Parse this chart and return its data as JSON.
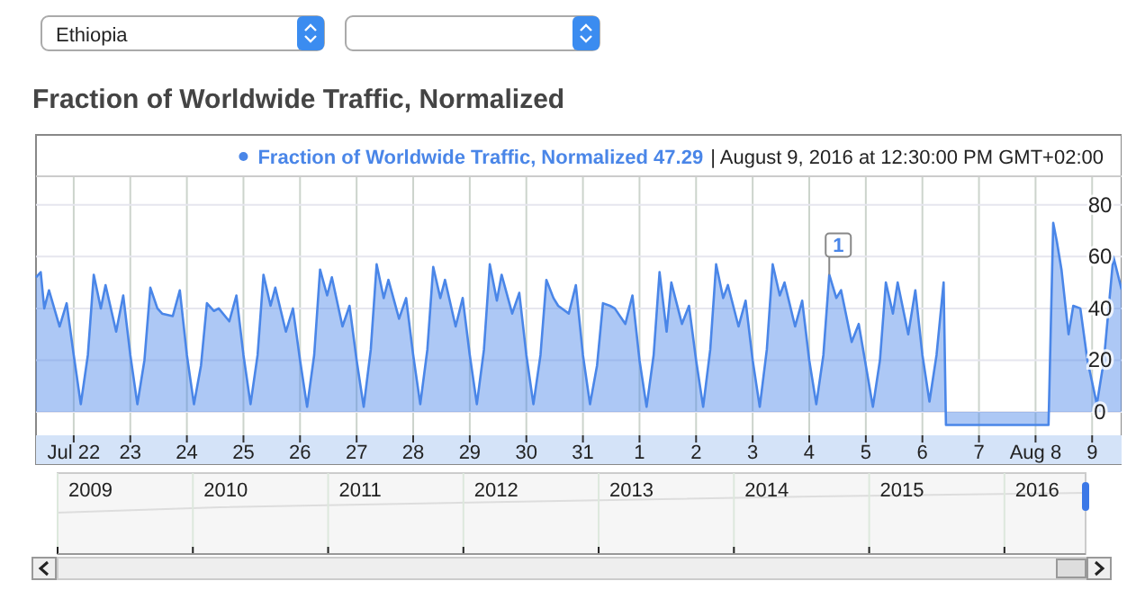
{
  "chart_data": {
    "type": "area",
    "title": "Fraction of Worldwide Traffic, Normalized",
    "x": [
      "2016-07-21T08:00",
      "2016-07-21T10:00",
      "2016-07-21T11:30",
      "2016-07-21T13:30",
      "2016-07-21T18:00",
      "2016-07-21T21:00",
      "2016-07-22T00:00",
      "2016-07-22T03:00",
      "2016-07-22T06:00",
      "2016-07-22T08:30",
      "2016-07-22T11:30",
      "2016-07-22T13:30",
      "2016-07-22T18:00",
      "2016-07-22T21:00",
      "2016-07-23T00:00",
      "2016-07-23T03:00",
      "2016-07-23T06:00",
      "2016-07-23T08:30",
      "2016-07-23T11:30",
      "2016-07-23T13:30",
      "2016-07-23T18:00",
      "2016-07-23T21:00",
      "2016-07-24T00:00",
      "2016-07-24T03:00",
      "2016-07-24T06:00",
      "2016-07-24T08:30",
      "2016-07-24T11:30",
      "2016-07-24T13:30",
      "2016-07-24T18:00",
      "2016-07-24T21:00",
      "2016-07-25T00:00",
      "2016-07-25T03:00",
      "2016-07-25T06:00",
      "2016-07-25T08:30",
      "2016-07-25T11:30",
      "2016-07-25T13:30",
      "2016-07-25T18:00",
      "2016-07-25T21:00",
      "2016-07-26T00:00",
      "2016-07-26T03:00",
      "2016-07-26T06:00",
      "2016-07-26T08:30",
      "2016-07-26T11:30",
      "2016-07-26T13:30",
      "2016-07-26T18:00",
      "2016-07-26T21:00",
      "2016-07-27T00:00",
      "2016-07-27T03:00",
      "2016-07-27T06:00",
      "2016-07-27T08:30",
      "2016-07-27T11:30",
      "2016-07-27T13:30",
      "2016-07-27T18:00",
      "2016-07-27T21:00",
      "2016-07-28T00:00",
      "2016-07-28T03:00",
      "2016-07-28T06:00",
      "2016-07-28T08:30",
      "2016-07-28T11:30",
      "2016-07-28T13:30",
      "2016-07-28T18:00",
      "2016-07-28T21:00",
      "2016-07-29T00:00",
      "2016-07-29T03:00",
      "2016-07-29T06:00",
      "2016-07-29T08:30",
      "2016-07-29T11:30",
      "2016-07-29T13:30",
      "2016-07-29T18:00",
      "2016-07-29T21:00",
      "2016-07-30T00:00",
      "2016-07-30T03:00",
      "2016-07-30T06:00",
      "2016-07-30T08:30",
      "2016-07-30T11:30",
      "2016-07-30T13:30",
      "2016-07-30T18:00",
      "2016-07-30T21:00",
      "2016-07-31T00:00",
      "2016-07-31T03:00",
      "2016-07-31T06:00",
      "2016-07-31T08:30",
      "2016-07-31T11:30",
      "2016-07-31T13:30",
      "2016-07-31T18:00",
      "2016-07-31T21:00",
      "2016-08-01T00:00",
      "2016-08-01T03:00",
      "2016-08-01T06:00",
      "2016-08-01T08:30",
      "2016-08-01T11:30",
      "2016-08-01T13:30",
      "2016-08-01T18:00",
      "2016-08-01T21:00",
      "2016-08-02T00:00",
      "2016-08-02T03:00",
      "2016-08-02T06:00",
      "2016-08-02T08:30",
      "2016-08-02T11:30",
      "2016-08-02T13:30",
      "2016-08-02T18:00",
      "2016-08-02T21:00",
      "2016-08-03T00:00",
      "2016-08-03T03:00",
      "2016-08-03T06:00",
      "2016-08-03T08:30",
      "2016-08-03T11:30",
      "2016-08-03T13:30",
      "2016-08-03T18:00",
      "2016-08-03T21:00",
      "2016-08-04T00:00",
      "2016-08-04T03:00",
      "2016-08-04T06:00",
      "2016-08-04T08:30",
      "2016-08-04T11:30",
      "2016-08-04T13:30",
      "2016-08-04T18:00",
      "2016-08-04T21:00",
      "2016-08-05T00:00",
      "2016-08-05T03:00",
      "2016-08-05T06:00",
      "2016-08-05T08:30",
      "2016-08-05T11:30",
      "2016-08-05T13:30",
      "2016-08-05T18:00",
      "2016-08-05T21:00",
      "2016-08-06T00:00",
      "2016-08-06T03:00",
      "2016-08-06T06:00",
      "2016-08-06T09:00",
      "2016-08-06T10:00",
      "2016-08-07T00:00",
      "2016-08-07T12:00",
      "2016-08-08T00:00",
      "2016-08-08T05:30",
      "2016-08-08T07:30",
      "2016-08-08T09:00",
      "2016-08-08T11:00",
      "2016-08-08T14:00",
      "2016-08-08T16:00",
      "2016-08-08T19:00",
      "2016-08-08T22:00",
      "2016-08-09T02:00",
      "2016-08-09T05:00",
      "2016-08-09T09:00",
      "2016-08-09T12:30"
    ],
    "series": [
      {
        "name": "Fraction of Worldwide Traffic, Normalized",
        "color": "#4a86e8",
        "values": [
          52,
          54,
          40,
          47,
          33,
          42,
          22,
          3,
          22,
          53,
          40,
          49,
          31,
          45,
          22,
          3,
          20,
          48,
          40,
          38,
          37,
          47,
          22,
          3,
          18,
          42,
          39,
          40,
          35,
          45,
          22,
          3,
          22,
          53,
          41,
          48,
          31,
          40,
          20,
          2,
          22,
          55,
          45,
          52,
          33,
          41,
          20,
          2,
          24,
          57,
          44,
          51,
          36,
          44,
          22,
          3,
          24,
          56,
          44,
          51,
          33,
          44,
          22,
          3,
          24,
          57,
          43,
          53,
          38,
          46,
          22,
          3,
          22,
          51,
          44,
          41,
          38,
          49,
          22,
          3,
          18,
          42,
          41,
          40,
          34,
          45,
          20,
          2,
          22,
          54,
          31,
          50,
          34,
          41,
          20,
          2,
          24,
          57,
          44,
          49,
          33,
          43,
          20,
          2,
          24,
          57,
          45,
          50,
          33,
          43,
          20,
          3,
          22,
          53,
          44,
          47,
          27,
          34,
          18,
          2,
          20,
          50,
          38,
          50,
          30,
          47,
          22,
          4,
          22,
          50,
          -5,
          -5,
          -5,
          -5,
          -5,
          73,
          66,
          55,
          30,
          41,
          40,
          20,
          3,
          20,
          60,
          47.29
        ]
      }
    ],
    "xlim": [
      "2016-07-21T08:00",
      "2016-08-09T12:30"
    ],
    "xticks": [
      {
        "value": "2016-07-22",
        "label": "Jul 22"
      },
      {
        "value": "2016-07-23",
        "label": "23"
      },
      {
        "value": "2016-07-24",
        "label": "24"
      },
      {
        "value": "2016-07-25",
        "label": "25"
      },
      {
        "value": "2016-07-26",
        "label": "26"
      },
      {
        "value": "2016-07-27",
        "label": "27"
      },
      {
        "value": "2016-07-28",
        "label": "28"
      },
      {
        "value": "2016-07-29",
        "label": "29"
      },
      {
        "value": "2016-07-30",
        "label": "30"
      },
      {
        "value": "2016-07-31",
        "label": "31"
      },
      {
        "value": "2016-08-01",
        "label": "1"
      },
      {
        "value": "2016-08-02",
        "label": "2"
      },
      {
        "value": "2016-08-03",
        "label": "3"
      },
      {
        "value": "2016-08-04",
        "label": "4"
      },
      {
        "value": "2016-08-05",
        "label": "5"
      },
      {
        "value": "2016-08-06",
        "label": "6"
      },
      {
        "value": "2016-08-07",
        "label": "7"
      },
      {
        "value": "2016-08-08",
        "label": "Aug 8"
      },
      {
        "value": "2016-08-09",
        "label": "9"
      }
    ],
    "ylim": [
      -9,
      91
    ],
    "yticks": [
      0,
      20,
      40,
      60,
      80
    ],
    "grid": true,
    "legend": "top",
    "annotations": [
      "Ethiopia",
      "47.29",
      "| August 9, 2016 at 12:30:00 PM GMT+02:00",
      {
        "text": "1",
        "x": "2016-08-04T08:30",
        "y": 53
      },
      "2009",
      "2010",
      "2011",
      "2012",
      "2013",
      "2014",
      "2015",
      "2016"
    ]
  }
}
